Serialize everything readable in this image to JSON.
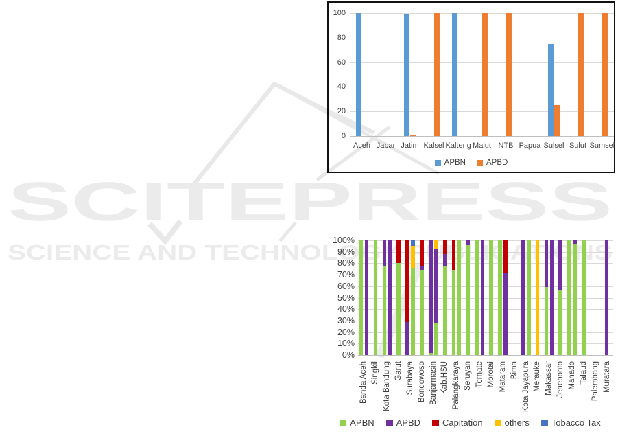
{
  "watermark": {
    "logo_text": "SCITEPRESS",
    "tagline_text": "SCIENCE AND TECHNOLOGY PUBLICATIONS",
    "color": "#ebebeb"
  },
  "colors": {
    "gridline": "#d9d9d9",
    "zero_line": "#bfbfbf",
    "axis_text": "#404040",
    "chart_border": "#111111"
  },
  "chart_data": [
    {
      "type": "bar",
      "title": "",
      "categories": [
        "Aceh",
        "Jabar",
        "Jatim",
        "Kalsel",
        "Kalteng",
        "Malut",
        "NTB",
        "Papua",
        "Sulsel",
        "Sulut",
        "Sumsel"
      ],
      "series": [
        {
          "name": "APBN",
          "color": "#5B9BD5",
          "values": [
            100,
            0,
            99,
            0,
            100,
            0,
            0,
            0,
            75,
            0,
            0
          ]
        },
        {
          "name": "APBD",
          "color": "#ED7D31",
          "values": [
            0,
            0,
            1,
            100,
            0,
            100,
            100,
            0,
            25,
            100,
            100
          ]
        }
      ],
      "ylim": [
        0,
        100
      ],
      "yticks": [
        0,
        20,
        40,
        60,
        80,
        100
      ],
      "ytick_labels": [
        "0",
        "20",
        "40",
        "60",
        "80",
        "100"
      ],
      "grid": true,
      "legend_position": "bottom"
    },
    {
      "type": "stacked-bar-100",
      "title": "",
      "categories": [
        "Banda Aceh",
        "Singkil",
        "Kota Bandung",
        "Garut",
        "Surabaya",
        "Bondowoso",
        "Banjarmasin",
        "Kab.HSU",
        "Palangkaraya",
        "Seruyan",
        "Ternate",
        "Morotai",
        "Mataram",
        "Bima",
        "Kota Jayapura",
        "Merauke",
        "Makassar",
        "Jeneponto",
        "Manado",
        "Talaud",
        "Palembang",
        "Muratara"
      ],
      "legend": [
        {
          "name": "APBN",
          "color": "#92D050"
        },
        {
          "name": "APBD",
          "color": "#7030A0"
        },
        {
          "name": "Capitation",
          "color": "#C00000"
        },
        {
          "name": "others",
          "color": "#FFC000"
        },
        {
          "name": "Tobacco Tax",
          "color": "#4472C4"
        }
      ],
      "ylim": [
        0,
        100
      ],
      "yticks": [
        0,
        10,
        20,
        30,
        40,
        50,
        60,
        70,
        80,
        90,
        100
      ],
      "ytick_labels": [
        "0%",
        "10%",
        "20%",
        "30%",
        "40%",
        "50%",
        "60%",
        "70%",
        "80%",
        "90%",
        "100%"
      ],
      "grid": true,
      "legend_position": "bottom",
      "values": [
        {
          "category": "Banda Aceh",
          "bars": [
            [
              {
                "s": "APBN",
                "v": 100
              }
            ],
            [
              {
                "s": "APBD",
                "v": 100
              }
            ]
          ]
        },
        {
          "category": "Singkil",
          "bars": [
            [
              {
                "s": "APBN",
                "v": 100
              }
            ]
          ]
        },
        {
          "category": "Kota Bandung",
          "bars": [
            [
              {
                "s": "APBN",
                "v": 78
              },
              {
                "s": "APBD",
                "v": 22
              }
            ],
            [
              {
                "s": "APBD",
                "v": 100
              }
            ]
          ]
        },
        {
          "category": "Garut",
          "bars": [
            [
              {
                "s": "APBN",
                "v": 80
              },
              {
                "s": "Capitation",
                "v": 20
              }
            ]
          ]
        },
        {
          "category": "Surabaya",
          "bars": [
            [
              {
                "s": "APBD",
                "v": 29
              },
              {
                "s": "Capitation",
                "v": 71
              }
            ],
            [
              {
                "s": "APBN",
                "v": 76
              },
              {
                "s": "others",
                "v": 19
              },
              {
                "s": "Tobacco Tax",
                "v": 5
              }
            ]
          ]
        },
        {
          "category": "Bondowoso",
          "bars": [
            [
              {
                "s": "APBN",
                "v": 74
              },
              {
                "s": "APBD",
                "v": 3
              },
              {
                "s": "Capitation",
                "v": 23
              }
            ]
          ]
        },
        {
          "category": "Banjarmasin",
          "bars": [
            [
              {
                "s": "APBN",
                "v": 2
              },
              {
                "s": "APBD",
                "v": 98
              }
            ],
            [
              {
                "s": "APBN",
                "v": 28
              },
              {
                "s": "APBD",
                "v": 65
              },
              {
                "s": "others",
                "v": 7
              }
            ]
          ]
        },
        {
          "category": "Kab.HSU",
          "bars": [
            [
              {
                "s": "APBN",
                "v": 78
              },
              {
                "s": "APBD",
                "v": 10
              },
              {
                "s": "Capitation",
                "v": 12
              }
            ]
          ]
        },
        {
          "category": "Palangkaraya",
          "bars": [
            [
              {
                "s": "APBN",
                "v": 74
              },
              {
                "s": "Capitation",
                "v": 26
              }
            ],
            [
              {
                "s": "APBN",
                "v": 100
              }
            ]
          ]
        },
        {
          "category": "Seruyan",
          "bars": [
            [
              {
                "s": "APBN",
                "v": 96
              },
              {
                "s": "APBD",
                "v": 4
              }
            ]
          ]
        },
        {
          "category": "Ternate",
          "bars": [
            [
              {
                "s": "APBN",
                "v": 100
              }
            ],
            [
              {
                "s": "APBD",
                "v": 100
              }
            ]
          ]
        },
        {
          "category": "Morotai",
          "bars": [
            [
              {
                "s": "APBN",
                "v": 100
              }
            ]
          ]
        },
        {
          "category": "Mataram",
          "bars": [
            [
              {
                "s": "APBN",
                "v": 100
              }
            ],
            [
              {
                "s": "APBD",
                "v": 71
              },
              {
                "s": "Capitation",
                "v": 29
              }
            ]
          ]
        },
        {
          "category": "Bima",
          "bars": []
        },
        {
          "category": "Kota Jayapura",
          "bars": [
            [
              {
                "s": "APBD",
                "v": 100
              }
            ],
            [
              {
                "s": "APBN",
                "v": 100
              }
            ]
          ]
        },
        {
          "category": "Merauke",
          "bars": [
            [
              {
                "s": "others",
                "v": 100
              }
            ]
          ]
        },
        {
          "category": "Makassar",
          "bars": [
            [
              {
                "s": "APBN",
                "v": 59
              },
              {
                "s": "APBD",
                "v": 41
              }
            ],
            [
              {
                "s": "APBD",
                "v": 100
              }
            ]
          ]
        },
        {
          "category": "Jeneponto",
          "bars": [
            [
              {
                "s": "APBN",
                "v": 57
              },
              {
                "s": "APBD",
                "v": 43
              }
            ]
          ]
        },
        {
          "category": "Manado",
          "bars": [
            [
              {
                "s": "APBN",
                "v": 100
              }
            ],
            [
              {
                "s": "APBN",
                "v": 97
              },
              {
                "s": "APBD",
                "v": 3
              }
            ]
          ]
        },
        {
          "category": "Talaud",
          "bars": [
            [
              {
                "s": "APBN",
                "v": 100
              }
            ]
          ]
        },
        {
          "category": "Palembang",
          "bars": []
        },
        {
          "category": "Muratara",
          "bars": [
            [
              {
                "s": "APBD",
                "v": 100
              }
            ]
          ]
        }
      ]
    }
  ]
}
